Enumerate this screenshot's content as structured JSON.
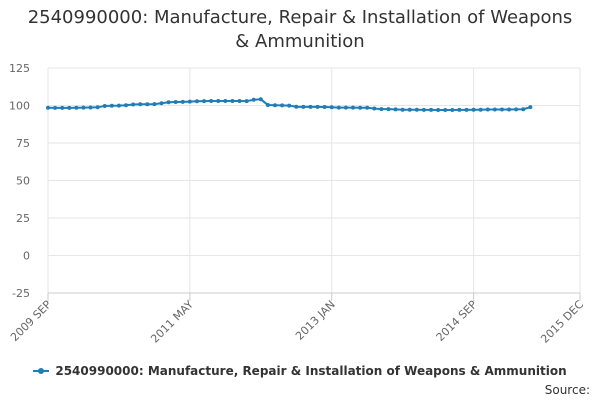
{
  "title_lines": [
    "2540990000: Manufacture, Repair & Installation of Weapons",
    "& Ammunition"
  ],
  "source_label": "Source:",
  "colors": {
    "series": "#1f7db8",
    "grid": "#e6e6e6",
    "axis": "#cccccc"
  },
  "chart_data": {
    "type": "line",
    "title": "2540990000: Manufacture, Repair & Installation of Weapons & Ammunition",
    "xlabel": "",
    "ylabel": "",
    "ylim": [
      -25,
      125
    ],
    "yticks": [
      -25,
      0,
      25,
      50,
      75,
      100,
      125
    ],
    "xlim": [
      "2009 SEP",
      "2015 DEC"
    ],
    "xticks": [
      "2009 SEP",
      "2011 MAY",
      "2013 JAN",
      "2014 SEP",
      "2015 DEC"
    ],
    "grid": true,
    "legend_position": "bottom",
    "series": [
      {
        "name": "2540990000: Manufacture, Repair & Installation of Weapons & Ammunition",
        "x": [
          "2009 SEP",
          "2009 OCT",
          "2009 NOV",
          "2009 DEC",
          "2010 JAN",
          "2010 FEB",
          "2010 MAR",
          "2010 APR",
          "2010 MAY",
          "2010 JUN",
          "2010 JUL",
          "2010 AUG",
          "2010 SEP",
          "2010 OCT",
          "2010 NOV",
          "2010 DEC",
          "2011 JAN",
          "2011 FEB",
          "2011 MAR",
          "2011 APR",
          "2011 MAY",
          "2011 JUN",
          "2011 JUL",
          "2011 AUG",
          "2011 SEP",
          "2011 OCT",
          "2011 NOV",
          "2011 DEC",
          "2012 JAN",
          "2012 FEB",
          "2012 MAR",
          "2012 APR",
          "2012 MAY",
          "2012 JUN",
          "2012 JUL",
          "2012 AUG",
          "2012 SEP",
          "2012 OCT",
          "2012 NOV",
          "2012 DEC",
          "2013 JAN",
          "2013 FEB",
          "2013 MAR",
          "2013 APR",
          "2013 MAY",
          "2013 JUN",
          "2013 JUL",
          "2013 AUG",
          "2013 SEP",
          "2013 OCT",
          "2013 NOV",
          "2013 DEC",
          "2014 JAN",
          "2014 FEB",
          "2014 MAR",
          "2014 APR",
          "2014 MAY",
          "2014 JUN",
          "2014 JUL",
          "2014 AUG",
          "2014 SEP",
          "2014 OCT",
          "2014 NOV",
          "2014 DEC",
          "2015 JAN",
          "2015 FEB",
          "2015 MAR",
          "2015 APR",
          "2015 MAY"
        ],
        "values": [
          98.5,
          98.4,
          98.4,
          98.4,
          98.5,
          98.6,
          98.7,
          98.8,
          99.7,
          99.8,
          99.9,
          100.2,
          100.7,
          100.8,
          100.8,
          100.9,
          101.5,
          102.2,
          102.3,
          102.4,
          102.6,
          102.8,
          102.9,
          103.0,
          103.0,
          103.0,
          103.0,
          103.0,
          102.9,
          103.8,
          104.2,
          100.3,
          100.2,
          100.1,
          99.9,
          99.2,
          99.1,
          99.1,
          99.1,
          99.0,
          98.8,
          98.6,
          98.6,
          98.6,
          98.5,
          98.5,
          98.0,
          97.6,
          97.6,
          97.4,
          97.2,
          97.2,
          97.2,
          97.1,
          97.1,
          97.0,
          97.0,
          97.0,
          97.1,
          97.1,
          97.2,
          97.2,
          97.3,
          97.3,
          97.3,
          97.3,
          97.4,
          97.5,
          98.9
        ]
      }
    ]
  }
}
